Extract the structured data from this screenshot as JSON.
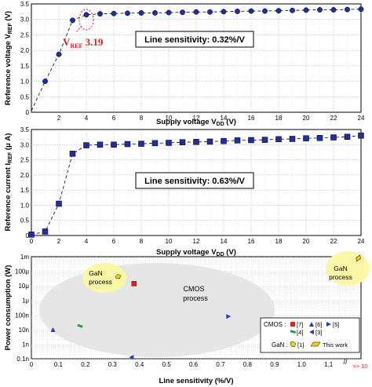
{
  "chart_data": [
    {
      "type": "line",
      "xlabel": "Supply voltage V",
      "xlabel_sub": "DD",
      "xlabel_unit": " (V)",
      "ylabel": "Reference voltage V",
      "ylabel_sub": "REF",
      "ylabel_unit": " (V)",
      "xlim": [
        0,
        24
      ],
      "ylim": [
        0,
        3.5
      ],
      "xticks": [
        "2",
        "4",
        "6",
        "8",
        "10",
        "12",
        "14",
        "16",
        "18",
        "20",
        "22",
        "24"
      ],
      "yticks": [
        "0",
        "0.5",
        "1.0",
        "1.5",
        "2.0",
        "2.5",
        "3.0",
        "3.5"
      ],
      "grid": true,
      "marker": "circle",
      "color": "#1f2f9f",
      "x": [
        1,
        2,
        3,
        4,
        5,
        6,
        7,
        8,
        9,
        10,
        11,
        12,
        13,
        14,
        15,
        16,
        17,
        18,
        19,
        20,
        21,
        22,
        23,
        24
      ],
      "y": [
        1.0,
        1.87,
        2.97,
        3.15,
        3.18,
        3.19,
        3.2,
        3.21,
        3.21,
        3.22,
        3.23,
        3.24,
        3.24,
        3.25,
        3.26,
        3.27,
        3.27,
        3.28,
        3.29,
        3.3,
        3.31,
        3.31,
        3.32,
        3.33
      ],
      "dashed_from": [
        0,
        0.05
      ],
      "annotation_main": "V",
      "annotation_sub": "REF",
      "annotation_val": " 3.19",
      "sensitivity": "Line sensitivity: 0.32%/V"
    },
    {
      "type": "line",
      "xlabel": "Supply voltage V",
      "xlabel_sub": "DD",
      "xlabel_unit": " (V)",
      "ylabel": "Reference current I",
      "ylabel_sub": "REF",
      "ylabel_unit": " (μ A)",
      "xlim": [
        0,
        24
      ],
      "ylim": [
        0,
        3.5
      ],
      "xticks": [
        "0",
        "2",
        "4",
        "6",
        "8",
        "10",
        "12",
        "14",
        "16",
        "18",
        "20",
        "22",
        "24"
      ],
      "yticks": [
        "0",
        "0.5",
        "1.0",
        "1.5",
        "2.0",
        "2.5",
        "3.0",
        "3.5"
      ],
      "grid": true,
      "marker": "square",
      "color": "#1f2f9f",
      "x": [
        0,
        1,
        2,
        3,
        4,
        5,
        6,
        7,
        8,
        9,
        10,
        11,
        12,
        13,
        14,
        15,
        16,
        17,
        18,
        19,
        20,
        21,
        22,
        23,
        24
      ],
      "y": [
        0.03,
        0.13,
        1.05,
        2.7,
        2.98,
        3.0,
        3.0,
        3.02,
        3.03,
        3.05,
        3.06,
        3.08,
        3.09,
        3.1,
        3.12,
        3.14,
        3.15,
        3.16,
        3.18,
        3.19,
        3.21,
        3.22,
        3.24,
        3.26,
        3.3
      ],
      "sensitivity": "Line sensitivity: 0.63%/V"
    },
    {
      "type": "scatter",
      "xlabel": "Line sensitivity (%/V)",
      "ylabel": "Power consumption (W)",
      "x_scale": "linear",
      "y_scale": "log",
      "xlim": [
        0,
        1.22
      ],
      "ylim_exp": [
        -10,
        -3
      ],
      "xticks": [
        "0",
        "0.1",
        "0.2",
        "0.3",
        "0.4",
        "0.5",
        "0.6",
        "0.7",
        "0.8",
        "0.9",
        "1.0",
        "1.1"
      ],
      "yticks": [
        "1m",
        "100μ",
        "10μ",
        "1μ",
        "100n",
        "10n",
        "1n",
        "0.1n"
      ],
      "x_break_label": ">> 10",
      "regions": [
        "GaN\nprocess",
        "CMOS\nprocess",
        "GaN\nprocess"
      ],
      "points": [
        {
          "ref": "[7]",
          "group": "CMOS",
          "x": 0.38,
          "y_exp": -4.85,
          "shape": "square",
          "color": "#e02020"
        },
        {
          "ref": "[6]",
          "group": "CMOS",
          "x": 0.08,
          "y_exp": -8.0,
          "shape": "triangle-up",
          "color": "#2a36c0"
        },
        {
          "ref": "[5]",
          "group": "CMOS",
          "x": 0.73,
          "y_exp": -7.1,
          "shape": "triangle-right",
          "color": "#2a36c0"
        },
        {
          "ref": "[4]",
          "group": "CMOS",
          "x": 0.18,
          "y_exp": -7.75,
          "shape": "dash",
          "color": "#2ea043"
        },
        {
          "ref": "[3]",
          "group": "CMOS",
          "x": 0.37,
          "y_exp": -9.9,
          "shape": "triangle-left",
          "color": "#2a36c0"
        },
        {
          "ref": "[1]",
          "group": "GaN",
          "x": 0.32,
          "y_exp": -4.35,
          "shape": "pentagon",
          "color": "#f0d21c"
        },
        {
          "ref": "This work",
          "group": "GaN",
          "x": 1.21,
          "y_exp": -3.1,
          "shape": "parallelogram",
          "color": "#f0d21c"
        }
      ],
      "legend": {
        "cmos_label": "CMOS :",
        "gan_label": "GaN :",
        "entries": [
          "[7]",
          "[6]",
          "[5]",
          "[4]",
          "[3]",
          "[1]",
          "This work"
        ]
      }
    }
  ]
}
